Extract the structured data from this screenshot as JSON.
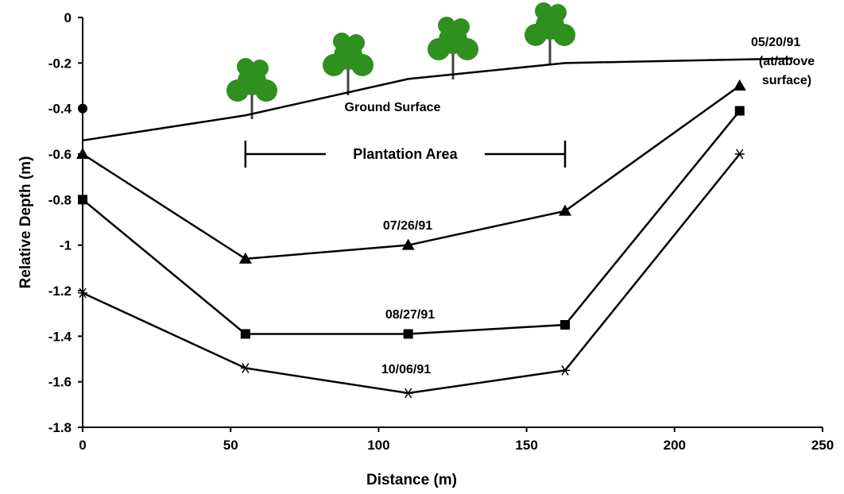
{
  "chart_data": {
    "type": "line",
    "xlabel": "Distance (m)",
    "ylabel": "Relative Depth (m)",
    "xlim": [
      0,
      250
    ],
    "xticks": [
      0,
      50,
      100,
      150,
      200,
      250
    ],
    "ylim": [
      -1.8,
      0
    ],
    "yticks": [
      0,
      -0.2,
      -0.4,
      -0.6,
      -0.8,
      -1,
      -1.2,
      -1.4,
      -1.6,
      -1.8
    ],
    "series": [
      {
        "name": "Ground Surface",
        "color": "#000000",
        "marker": "none",
        "x": [
          0,
          55,
          110,
          163,
          240
        ],
        "values": [
          -0.54,
          -0.43,
          -0.27,
          -0.2,
          -0.18
        ]
      },
      {
        "name": "05/20/91",
        "color": "#000000",
        "marker": "circle",
        "x": [
          0
        ],
        "values": [
          -0.4
        ],
        "note": [
          "(at/above",
          "surface)"
        ]
      },
      {
        "name": "07/26/91",
        "color": "#000000",
        "marker": "triangle",
        "x": [
          0,
          55,
          110,
          163,
          222
        ],
        "values": [
          -0.6,
          -1.06,
          -1.0,
          -0.85,
          -0.3
        ]
      },
      {
        "name": "08/27/91",
        "color": "#000000",
        "marker": "square",
        "x": [
          0,
          55,
          110,
          163,
          222
        ],
        "values": [
          -0.8,
          -1.39,
          -1.39,
          -1.35,
          -0.41
        ]
      },
      {
        "name": "10/06/91",
        "color": "#000000",
        "marker": "asterisk",
        "x": [
          0,
          55,
          110,
          163,
          222
        ],
        "values": [
          -1.21,
          -1.54,
          -1.65,
          -1.55,
          -0.6
        ]
      }
    ],
    "annotations": [
      {
        "text": "Plantation Area",
        "x_start": 55,
        "x_end": 163,
        "y": -0.6
      }
    ]
  }
}
